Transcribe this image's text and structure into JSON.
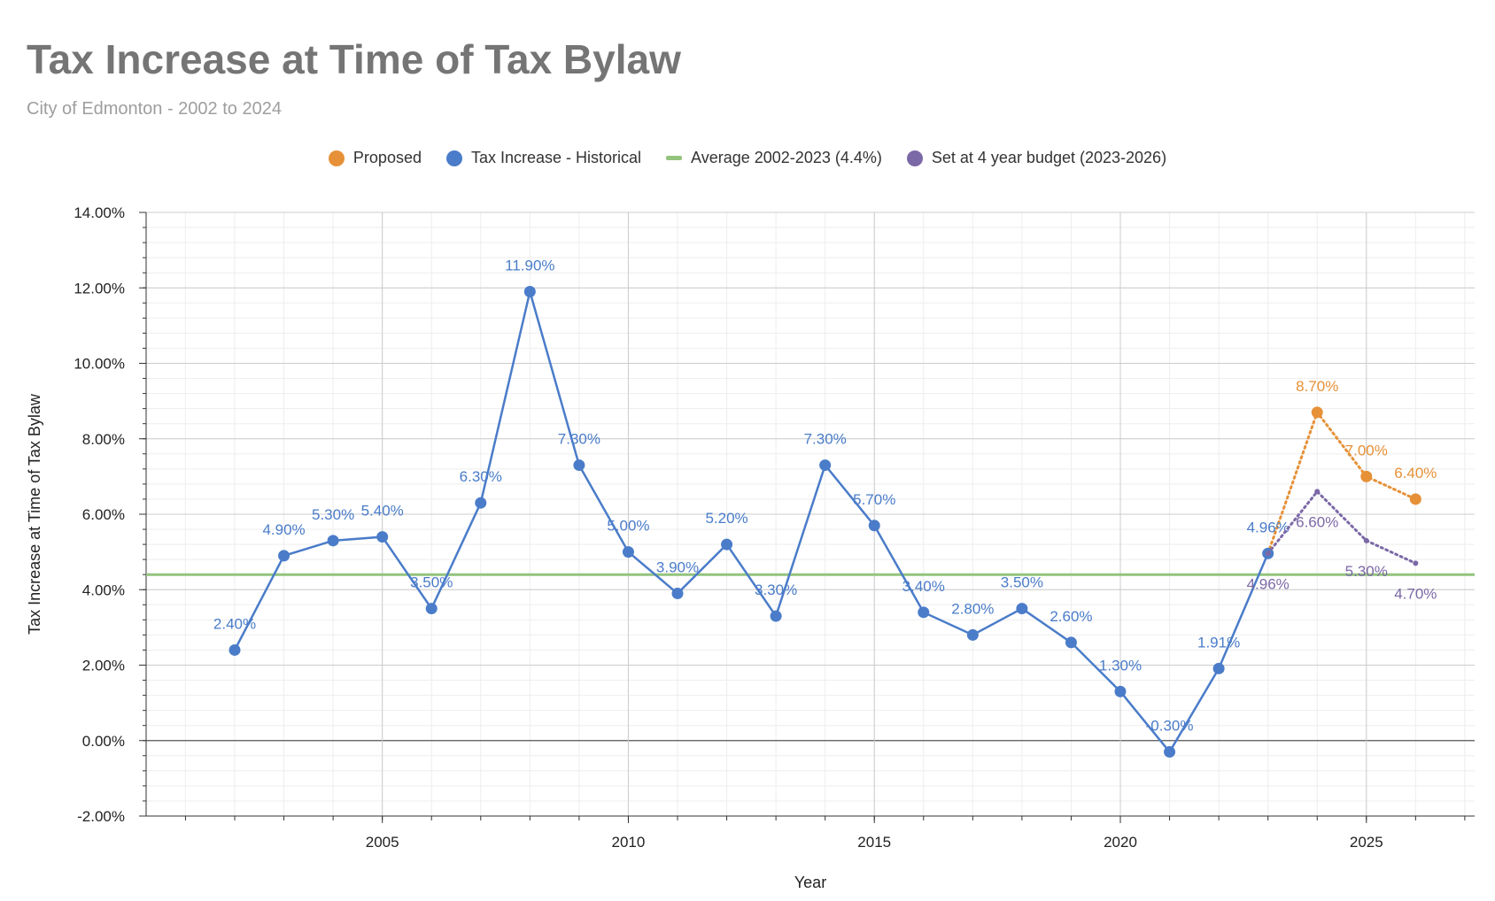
{
  "chart_data": {
    "type": "line",
    "title": "Tax Increase at Time of Tax Bylaw",
    "subtitle": "City of Edmonton - 2002 to 2024",
    "xlabel": "Year",
    "ylabel": "Tax Increase at Time of Tax Bylaw",
    "xlim": [
      2000.2,
      2027.2
    ],
    "ylim": [
      -2.0,
      14.0
    ],
    "xticks": [
      {
        "value": 2005,
        "label": "2005"
      },
      {
        "value": 2010,
        "label": "2010"
      },
      {
        "value": 2015,
        "label": "2015"
      },
      {
        "value": 2020,
        "label": "2020"
      },
      {
        "value": 2025,
        "label": "2025"
      }
    ],
    "yticks": [
      {
        "value": 14,
        "label": "14.00%"
      },
      {
        "value": 12,
        "label": "12.00%"
      },
      {
        "value": 10,
        "label": "10.00%"
      },
      {
        "value": 8,
        "label": "8.00%"
      },
      {
        "value": 6,
        "label": "6.00%"
      },
      {
        "value": 4,
        "label": "4.00%"
      },
      {
        "value": 2,
        "label": "2.00%"
      },
      {
        "value": 0,
        "label": "0.00%"
      },
      {
        "value": -2,
        "label": "-2.00%"
      }
    ],
    "grid": true,
    "legend_position": "top",
    "series": [
      {
        "name": "Proposed",
        "color": "#e69138",
        "style": "dotted",
        "marker": "large",
        "points": [
          {
            "x": 2023,
            "y": 4.96,
            "label": "",
            "marker": false
          },
          {
            "x": 2024,
            "y": 8.7,
            "label": "8.70%"
          },
          {
            "x": 2025,
            "y": 7.0,
            "label": "7.00%"
          },
          {
            "x": 2026,
            "y": 6.4,
            "label": "6.40%"
          }
        ]
      },
      {
        "name": "Tax Increase - Historical",
        "color": "#4a7cc9",
        "style": "solid",
        "marker": "large",
        "points": [
          {
            "x": 2002,
            "y": 2.4,
            "label": "2.40%"
          },
          {
            "x": 2003,
            "y": 4.9,
            "label": "4.90%"
          },
          {
            "x": 2004,
            "y": 5.3,
            "label": "5.30%"
          },
          {
            "x": 2005,
            "y": 5.4,
            "label": "5.40%"
          },
          {
            "x": 2006,
            "y": 3.5,
            "label": "3.50%"
          },
          {
            "x": 2007,
            "y": 6.3,
            "label": "6.30%"
          },
          {
            "x": 2008,
            "y": 11.9,
            "label": "11.90%"
          },
          {
            "x": 2009,
            "y": 7.3,
            "label": "7.30%"
          },
          {
            "x": 2010,
            "y": 5.0,
            "label": "5.00%"
          },
          {
            "x": 2011,
            "y": 3.9,
            "label": "3.90%"
          },
          {
            "x": 2012,
            "y": 5.2,
            "label": "5.20%"
          },
          {
            "x": 2013,
            "y": 3.3,
            "label": "3.30%"
          },
          {
            "x": 2014,
            "y": 7.3,
            "label": "7.30%"
          },
          {
            "x": 2015,
            "y": 5.7,
            "label": "5.70%"
          },
          {
            "x": 2016,
            "y": 3.4,
            "label": "3.40%"
          },
          {
            "x": 2017,
            "y": 2.8,
            "label": "2.80%"
          },
          {
            "x": 2018,
            "y": 3.5,
            "label": "3.50%"
          },
          {
            "x": 2019,
            "y": 2.6,
            "label": "2.60%"
          },
          {
            "x": 2020,
            "y": 1.3,
            "label": "1.30%"
          },
          {
            "x": 2021,
            "y": -0.3,
            "label": "-0.30%"
          },
          {
            "x": 2022,
            "y": 1.91,
            "label": "1.91%"
          },
          {
            "x": 2023,
            "y": 4.96,
            "label": "4.96%"
          }
        ]
      },
      {
        "name": "Average 2002-2023 (4.4%)",
        "color": "#93c47d",
        "style": "solid",
        "marker": "none",
        "points": [
          {
            "x": 2000.2,
            "y": 4.4,
            "label": ""
          },
          {
            "x": 2027.2,
            "y": 4.4,
            "label": ""
          }
        ]
      },
      {
        "name": "Set at 4 year budget (2023-2026)",
        "color": "#7b68a6",
        "style": "dotted",
        "marker": "small",
        "points": [
          {
            "x": 2023,
            "y": 4.96,
            "label": "4.96%"
          },
          {
            "x": 2024,
            "y": 6.6,
            "label": "6.60%"
          },
          {
            "x": 2025,
            "y": 5.3,
            "label": "5.30%"
          },
          {
            "x": 2026,
            "y": 4.7,
            "label": "4.70%"
          }
        ]
      }
    ]
  }
}
